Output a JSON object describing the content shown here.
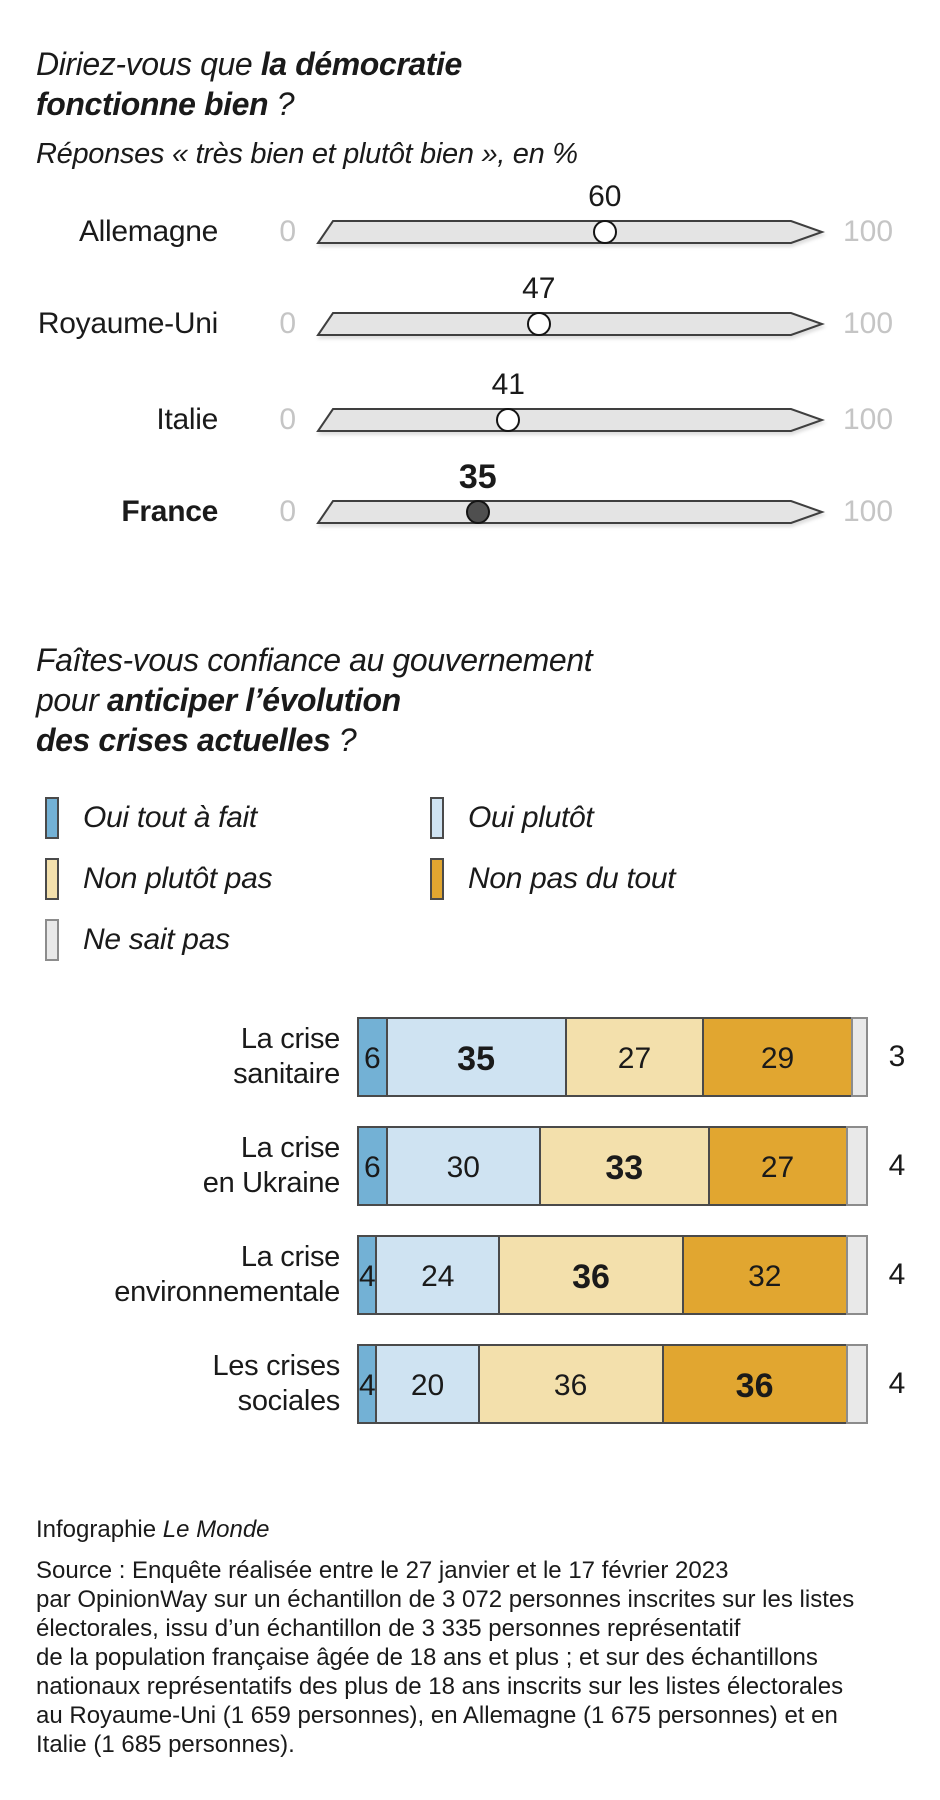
{
  "colors": {
    "oui_tout_a_fait": "#73b1d5",
    "oui_plutot": "#cfe3f2",
    "non_plutot_pas": "#f3e0ac",
    "non_pas_du_tout": "#e1a630",
    "ne_sait_pas": "#e9e9e9",
    "track_fill": "#e4e4e4",
    "track_border": "#3f3f3f",
    "axis_muted": "#c5c5c5",
    "france_marker": "#4f4f4f",
    "text": "#1a1a1a"
  },
  "chart1": {
    "title": {
      "p1": "Diriez-vous que ",
      "b1": "la démocratie",
      "b2": "fonctionne bien",
      "p2": " ?"
    },
    "subtitle": "Réponses « très bien et plutôt bien », en %",
    "axis_min": "0",
    "axis_max": "100",
    "rows": [
      {
        "label": "Allemagne",
        "value": 60,
        "highlight": false
      },
      {
        "label": "Royaume-Uni",
        "value": 47,
        "highlight": false
      },
      {
        "label": "Italie",
        "value": 41,
        "highlight": false
      },
      {
        "label": "France",
        "value": 35,
        "highlight": true
      }
    ]
  },
  "chart2": {
    "title": {
      "p1": "Faîtes-vous confiance au gouvernement",
      "p2": "pour ",
      "b1": "anticiper l’évolution",
      "b2": "des crises actuelles",
      "p3": " ?"
    },
    "legend": [
      {
        "label": "Oui tout à fait",
        "color_key": "oui_tout_a_fait",
        "col": 0,
        "row": 0
      },
      {
        "label": "Oui plutôt",
        "color_key": "oui_plutot",
        "col": 1,
        "row": 0
      },
      {
        "label": "Non plutôt pas",
        "color_key": "non_plutot_pas",
        "col": 0,
        "row": 1
      },
      {
        "label": "Non pas du tout",
        "color_key": "non_pas_du_tout",
        "col": 1,
        "row": 1
      },
      {
        "label": "Ne sait pas",
        "color_key": "ne_sait_pas",
        "col": 0,
        "row": 2
      }
    ],
    "rows": [
      {
        "label_lines": [
          "La crise",
          "sanitaire"
        ],
        "values": [
          6,
          35,
          27,
          29,
          3
        ],
        "bold_index": 1
      },
      {
        "label_lines": [
          "La crise",
          "en Ukraine"
        ],
        "values": [
          6,
          30,
          33,
          27,
          4
        ],
        "bold_index": 2
      },
      {
        "label_lines": [
          "La crise",
          "environnementale"
        ],
        "values": [
          4,
          24,
          36,
          32,
          4
        ],
        "bold_index": 2
      },
      {
        "label_lines": [
          "Les crises",
          "sociales"
        ],
        "values": [
          4,
          20,
          36,
          36,
          4
        ],
        "bold_index": 3
      }
    ]
  },
  "footer": {
    "credit_prefix": "Infographie ",
    "credit_brand": "Le Monde",
    "source_lines": [
      "Source : Enquête réalisée entre le 27 janvier et le 17 février 2023",
      "par OpinionWay sur un échantillon de 3 072 personnes inscrites sur les listes",
      "électorales, issu d’un échantillon de 3 335 personnes représentatif",
      "de la population française âgée de 18 ans et plus ; et sur des échantillons",
      "nationaux représentatifs des plus de 18 ans inscrits sur les listes électorales",
      "au Royaume-Uni (1 659 personnes), en Allemagne (1 675 personnes) et en",
      "Italie (1 685 personnes)."
    ]
  },
  "chart_data": [
    {
      "type": "bar",
      "title": "Diriez-vous que la démocratie fonctionne bien ?",
      "subtitle": "Réponses « très bien et plutôt bien », en %",
      "categories": [
        "Allemagne",
        "Royaume-Uni",
        "Italie",
        "France"
      ],
      "values": [
        60,
        47,
        41,
        35
      ],
      "xlabel": "",
      "ylabel": "",
      "xlim": [
        0,
        100
      ],
      "highlight_category": "France",
      "layout": "horizontal-dot-slider"
    },
    {
      "type": "bar",
      "stacked": true,
      "orientation": "horizontal",
      "title": "Faîtes-vous confiance au gouvernement pour anticiper l’évolution des crises actuelles ?",
      "categories": [
        "La crise sanitaire",
        "La crise en Ukraine",
        "La crise environnementale",
        "Les crises sociales"
      ],
      "series": [
        {
          "name": "Oui tout à fait",
          "values": [
            6,
            6,
            4,
            4
          ],
          "color": "#73b1d5"
        },
        {
          "name": "Oui plutôt",
          "values": [
            35,
            30,
            24,
            20
          ],
          "color": "#cfe3f2"
        },
        {
          "name": "Non plutôt pas",
          "values": [
            27,
            33,
            36,
            36
          ],
          "color": "#f3e0ac"
        },
        {
          "name": "Non pas du tout",
          "values": [
            29,
            27,
            32,
            36
          ],
          "color": "#e1a630"
        },
        {
          "name": "Ne sait pas",
          "values": [
            3,
            4,
            4,
            4
          ],
          "color": "#e9e9e9"
        }
      ],
      "xlim": [
        0,
        100
      ],
      "legend_position": "top-left",
      "value_labels": "inside-except-last-series-outside"
    }
  ]
}
